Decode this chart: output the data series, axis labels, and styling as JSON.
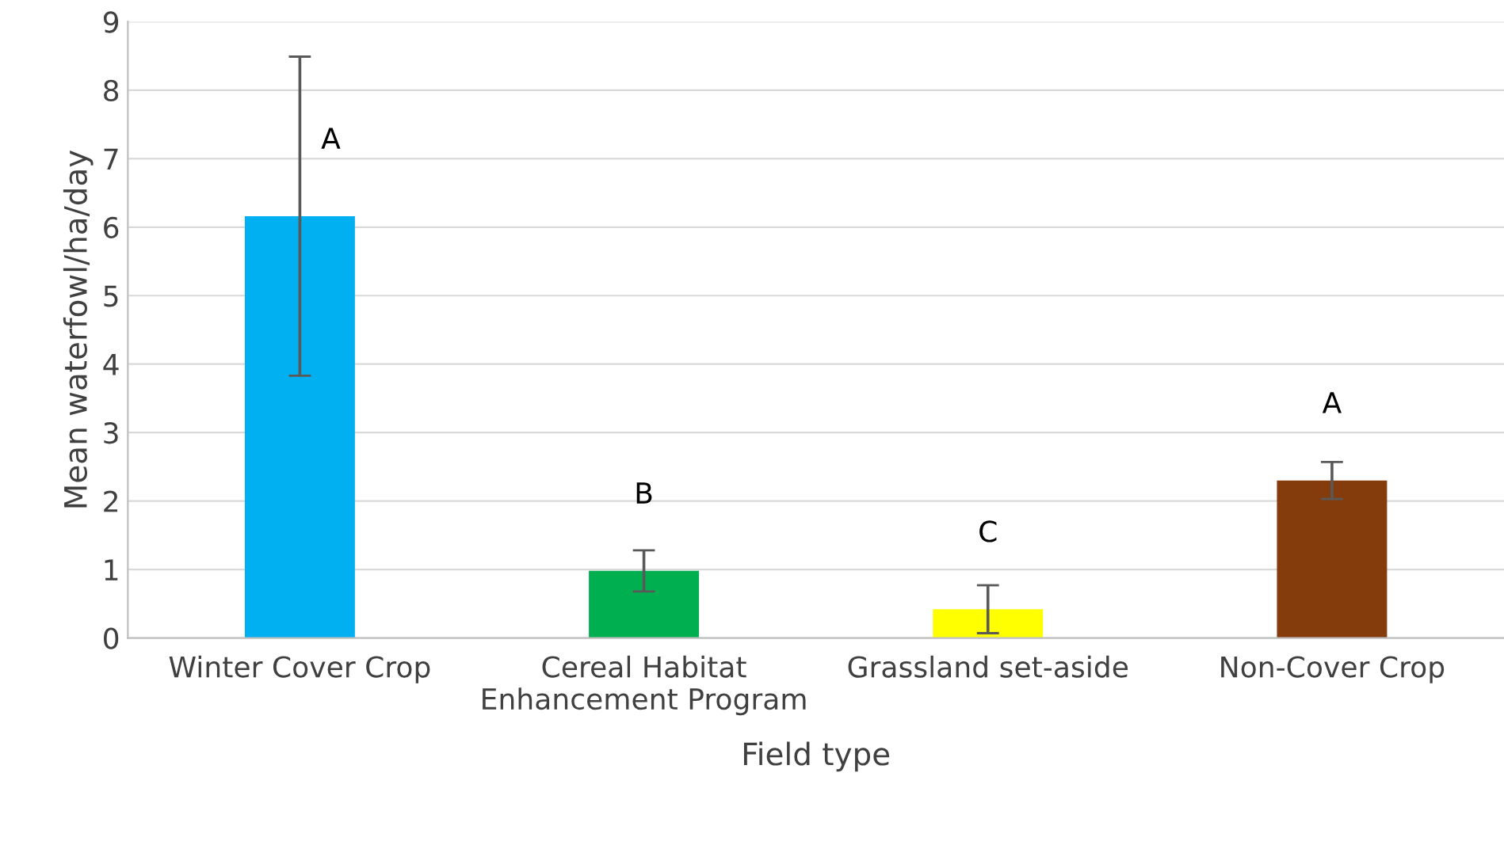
{
  "chart_data": {
    "type": "bar",
    "xlabel": "Field type",
    "ylabel": "Mean waterfowl/ha/day",
    "categories": [
      "Winter Cover Crop",
      "Cereal Habitat Enhancement Program",
      "Grassland set-aside",
      "Non-Cover Crop"
    ],
    "values": [
      6.16,
      0.98,
      0.42,
      2.3
    ],
    "colors": [
      "#00b0f0",
      "#00b050",
      "#ffff00",
      "#843c0c"
    ],
    "errors": [
      2.33,
      0.3,
      0.35,
      0.27
    ],
    "ylim": [
      0,
      9
    ],
    "yticks": [
      0,
      1,
      2,
      3,
      4,
      5,
      6,
      7,
      8,
      9
    ],
    "grid": "y",
    "annotations": [
      "A",
      "B",
      "C",
      "A"
    ]
  }
}
